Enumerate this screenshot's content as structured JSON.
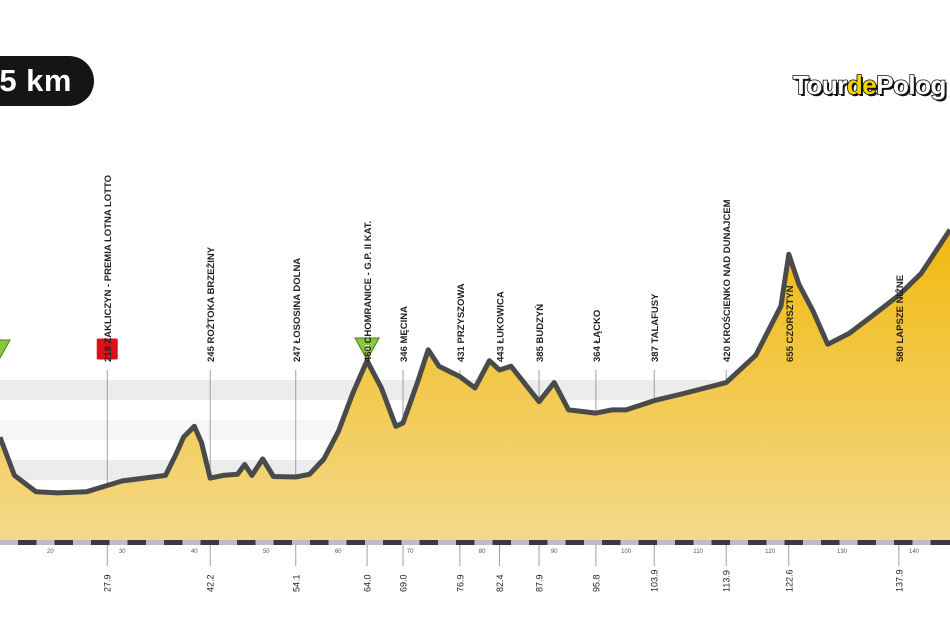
{
  "distance_badge": {
    "text": "5 km"
  },
  "logo": {
    "part1": "Tour",
    "part2": "de",
    "part3": "Polog"
  },
  "colors": {
    "profile_top": "#f2b90f",
    "profile_bottom": "#f3d98a",
    "outline": "#4a4a4a",
    "sprint_marker": "#d7121b",
    "climb_marker": "#8cc63f",
    "band": "#ececec"
  },
  "chart_data": {
    "type": "area",
    "title": "",
    "xlabel": "",
    "ylabel": "",
    "xlim": [
      13,
      145
    ],
    "ylim": [
      150,
      780
    ],
    "x": [
      13,
      15,
      18,
      21,
      25,
      30,
      36,
      37.5,
      38.5,
      40,
      41,
      42.2,
      44,
      46,
      47,
      48,
      49.5,
      51,
      54.1,
      56,
      58,
      60,
      62,
      64,
      66,
      68,
      69,
      71,
      72.5,
      74,
      76.9,
      79,
      81,
      82.4,
      84,
      87.9,
      90,
      92,
      95.8,
      98,
      100,
      103.9,
      108,
      113.9,
      118,
      121.5,
      122.6,
      124,
      126,
      128,
      131,
      134,
      137.9,
      141,
      145
    ],
    "y": [
      320,
      250,
      220,
      218,
      220,
      240,
      250,
      290,
      320,
      340,
      310,
      245,
      250,
      252,
      270,
      250,
      280,
      248,
      247,
      252,
      280,
      330,
      400,
      460,
      410,
      340,
      346,
      420,
      480,
      450,
      431,
      410,
      460,
      443,
      450,
      385,
      420,
      370,
      364,
      370,
      370,
      387,
      400,
      420,
      470,
      560,
      655,
      600,
      550,
      490,
      510,
      540,
      580,
      620,
      700
    ],
    "km_markers": [
      "27.9",
      "42.2",
      "54.1",
      "64.0",
      "69.0",
      "76.9",
      "82.4",
      "87.9",
      "95.8",
      "103.9",
      "113.9",
      "122.6",
      "137.9"
    ],
    "km_positions": [
      27.9,
      42.2,
      54.1,
      64.0,
      69.0,
      76.9,
      82.4,
      87.9,
      95.8,
      103.9,
      113.9,
      122.6,
      137.9
    ],
    "axis_ticks": [
      "20",
      "30",
      "40",
      "50",
      "60",
      "70",
      "80",
      "90",
      "100",
      "110",
      "120",
      "130",
      "140"
    ],
    "axis_tick_positions": [
      20,
      30,
      40,
      50,
      60,
      70,
      80,
      90,
      100,
      110,
      120,
      130,
      140
    ],
    "waypoints": [
      {
        "km": 27.9,
        "label": "218 ZAKLICZYN - PREMIA LOTNA LOTTO",
        "marker": "sprint"
      },
      {
        "km": 42.2,
        "label": "245 ROŻTOKA BRZEŻINY",
        "marker": ""
      },
      {
        "km": 54.1,
        "label": "247 ŁOSOSINA DOLNA",
        "marker": ""
      },
      {
        "km": 64.0,
        "label": "460 CHOMRANICE - G.P. II KAT.",
        "marker": "climb",
        "category": "II"
      },
      {
        "km": 69.0,
        "label": "346 MĘCINA",
        "marker": ""
      },
      {
        "km": 76.9,
        "label": "431 PRZYSZOWA",
        "marker": ""
      },
      {
        "km": 82.4,
        "label": "443 ŁUKOWICA",
        "marker": ""
      },
      {
        "km": 87.9,
        "label": "385 BUDZYŃ",
        "marker": ""
      },
      {
        "km": 95.8,
        "label": "364 ŁĄCKO",
        "marker": ""
      },
      {
        "km": 103.9,
        "label": "387 TALAFUSY",
        "marker": ""
      },
      {
        "km": 113.9,
        "label": "420 KROŚCIENKO NAD DUNAJCEM",
        "marker": ""
      },
      {
        "km": 122.6,
        "label": "655 CZORSZTYN",
        "marker": ""
      },
      {
        "km": 137.9,
        "label": "580 LAPSZE NIŻNE",
        "marker": ""
      }
    ],
    "grid": false,
    "legend": "none"
  }
}
